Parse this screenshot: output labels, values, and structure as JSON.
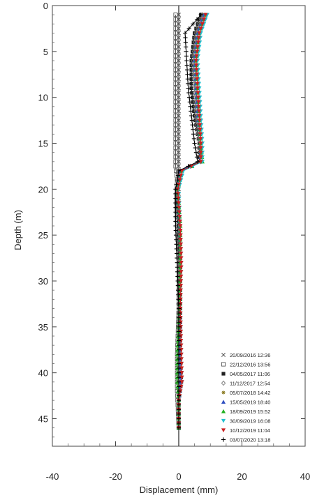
{
  "chart_data": {
    "type": "line",
    "title": "",
    "xlabel": "Displacement (mm)",
    "ylabel": "Depth (m)",
    "xlim": [
      -40,
      40
    ],
    "ylim": [
      0,
      48
    ],
    "y_inverted": true,
    "x_ticks": [
      "-40",
      "-20",
      "0",
      "20",
      "40"
    ],
    "y_ticks": [
      "0",
      "5",
      "10",
      "15",
      "20",
      "25",
      "30",
      "35",
      "40",
      "45"
    ],
    "grid": false,
    "legend_position": "bottom-right",
    "series": [
      {
        "name": "20/09/2016 12:36",
        "color": "#555555",
        "marker": "cross",
        "points": [
          [
            0,
            1
          ],
          [
            0,
            46
          ]
        ]
      },
      {
        "name": "22/12/2016 13:56",
        "color": "#555555",
        "marker": "square",
        "points": [
          [
            -1,
            1
          ],
          [
            -1,
            3
          ],
          [
            -1,
            6
          ],
          [
            -1,
            9
          ],
          [
            -1,
            12
          ],
          [
            -1,
            15
          ],
          [
            -1,
            17.5
          ],
          [
            -0.5,
            19
          ],
          [
            -0.8,
            21
          ],
          [
            -0.5,
            24
          ],
          [
            0,
            28
          ],
          [
            0,
            33
          ],
          [
            -0.5,
            38
          ],
          [
            -0.5,
            42
          ],
          [
            0,
            46
          ]
        ]
      },
      {
        "name": "04/05/2017 11:06",
        "color": "#222222",
        "marker": "square-filled",
        "points": [
          [
            7,
            1
          ],
          [
            5,
            3
          ],
          [
            4,
            6
          ],
          [
            4,
            9
          ],
          [
            5,
            12
          ],
          [
            6.5,
            15
          ],
          [
            6.5,
            17
          ],
          [
            0.5,
            18
          ],
          [
            -0.5,
            20
          ],
          [
            0,
            24
          ],
          [
            0.5,
            28
          ],
          [
            0.5,
            33
          ],
          [
            0.5,
            38
          ],
          [
            0.8,
            41
          ],
          [
            0,
            43
          ],
          [
            0,
            46
          ]
        ]
      },
      {
        "name": "11/12/2017 12:54",
        "color": "#777777",
        "marker": "diamond",
        "points": [
          [
            7.5,
            1
          ],
          [
            5.5,
            3
          ],
          [
            4.5,
            6
          ],
          [
            5,
            9
          ],
          [
            5.5,
            12
          ],
          [
            6.5,
            15
          ],
          [
            7,
            17
          ],
          [
            0.5,
            18
          ],
          [
            -0.5,
            20
          ],
          [
            0.3,
            24
          ],
          [
            0.5,
            28
          ],
          [
            0.3,
            33
          ],
          [
            0.5,
            38
          ],
          [
            0.8,
            41
          ],
          [
            0,
            43
          ],
          [
            0,
            46
          ]
        ]
      },
      {
        "name": "05/07/2018 14:42",
        "color": "#8a7a20",
        "marker": "star",
        "points": [
          [
            8,
            1
          ],
          [
            6,
            3
          ],
          [
            5,
            6
          ],
          [
            5.5,
            9
          ],
          [
            6,
            12
          ],
          [
            7,
            15
          ],
          [
            7,
            17
          ],
          [
            0.5,
            18
          ],
          [
            -0.5,
            20
          ],
          [
            0.3,
            24
          ],
          [
            0.5,
            28
          ],
          [
            0.3,
            33
          ],
          [
            0.3,
            38
          ],
          [
            0.5,
            41
          ],
          [
            0,
            43
          ],
          [
            0,
            46
          ]
        ]
      },
      {
        "name": "15/05/2019 18:40",
        "color": "#3050c0",
        "marker": "triangle",
        "points": [
          [
            8,
            1
          ],
          [
            6,
            3
          ],
          [
            5,
            6
          ],
          [
            5.5,
            9
          ],
          [
            6,
            12
          ],
          [
            7,
            15
          ],
          [
            7,
            17
          ],
          [
            0.5,
            18
          ],
          [
            -0.5,
            20
          ],
          [
            0.3,
            24
          ],
          [
            0.5,
            28
          ],
          [
            0.3,
            33
          ],
          [
            0.3,
            38
          ],
          [
            0.5,
            41
          ],
          [
            0,
            43
          ],
          [
            0,
            46
          ]
        ]
      },
      {
        "name": "18/09/2019 15:52",
        "color": "#20b020",
        "marker": "triangle",
        "points": [
          [
            8.5,
            1
          ],
          [
            6.5,
            3
          ],
          [
            5.5,
            6
          ],
          [
            6,
            9
          ],
          [
            6.5,
            12
          ],
          [
            7,
            15
          ],
          [
            7.5,
            17
          ],
          [
            1,
            18
          ],
          [
            -0.3,
            20
          ],
          [
            0.5,
            24
          ],
          [
            0.5,
            28
          ],
          [
            0.3,
            33
          ],
          [
            -0.5,
            38
          ],
          [
            -0.5,
            41
          ],
          [
            0,
            43
          ],
          [
            0,
            46
          ]
        ]
      },
      {
        "name": "30/09/2019 16:08",
        "color": "#20c0d0",
        "marker": "triangle-down",
        "points": [
          [
            9,
            1
          ],
          [
            7,
            3
          ],
          [
            6,
            6
          ],
          [
            6.5,
            9
          ],
          [
            7,
            12
          ],
          [
            7.5,
            15
          ],
          [
            7.5,
            17
          ],
          [
            1.5,
            18
          ],
          [
            0,
            20
          ],
          [
            0.5,
            24
          ],
          [
            0.8,
            28
          ],
          [
            0.5,
            33
          ],
          [
            0.8,
            38
          ],
          [
            1,
            41
          ],
          [
            0,
            43
          ],
          [
            0,
            46
          ]
        ]
      },
      {
        "name": "10/12/2019 11:04",
        "color": "#cc2020",
        "marker": "triangle-down",
        "points": [
          [
            8.5,
            1
          ],
          [
            6.5,
            3
          ],
          [
            5.5,
            6
          ],
          [
            6,
            9
          ],
          [
            6.5,
            12
          ],
          [
            7,
            15
          ],
          [
            7,
            17
          ],
          [
            1,
            18
          ],
          [
            -0.3,
            20
          ],
          [
            0.5,
            24
          ],
          [
            0.8,
            28
          ],
          [
            0.5,
            33
          ],
          [
            0.8,
            38
          ],
          [
            1,
            41
          ],
          [
            0,
            43
          ],
          [
            0,
            46
          ]
        ]
      },
      {
        "name": "03/07/2020 13:18",
        "color": "#000000",
        "marker": "plus",
        "points": [
          [
            7,
            1
          ],
          [
            2,
            3
          ],
          [
            2.5,
            6
          ],
          [
            3,
            9
          ],
          [
            4,
            12
          ],
          [
            5,
            15
          ],
          [
            6,
            17
          ],
          [
            0,
            18
          ],
          [
            -1,
            20
          ],
          [
            -1,
            24
          ],
          [
            -0.5,
            28
          ],
          [
            0,
            33
          ],
          [
            0,
            38
          ],
          [
            0,
            41
          ],
          [
            0,
            43
          ],
          [
            0,
            46
          ]
        ]
      }
    ]
  }
}
